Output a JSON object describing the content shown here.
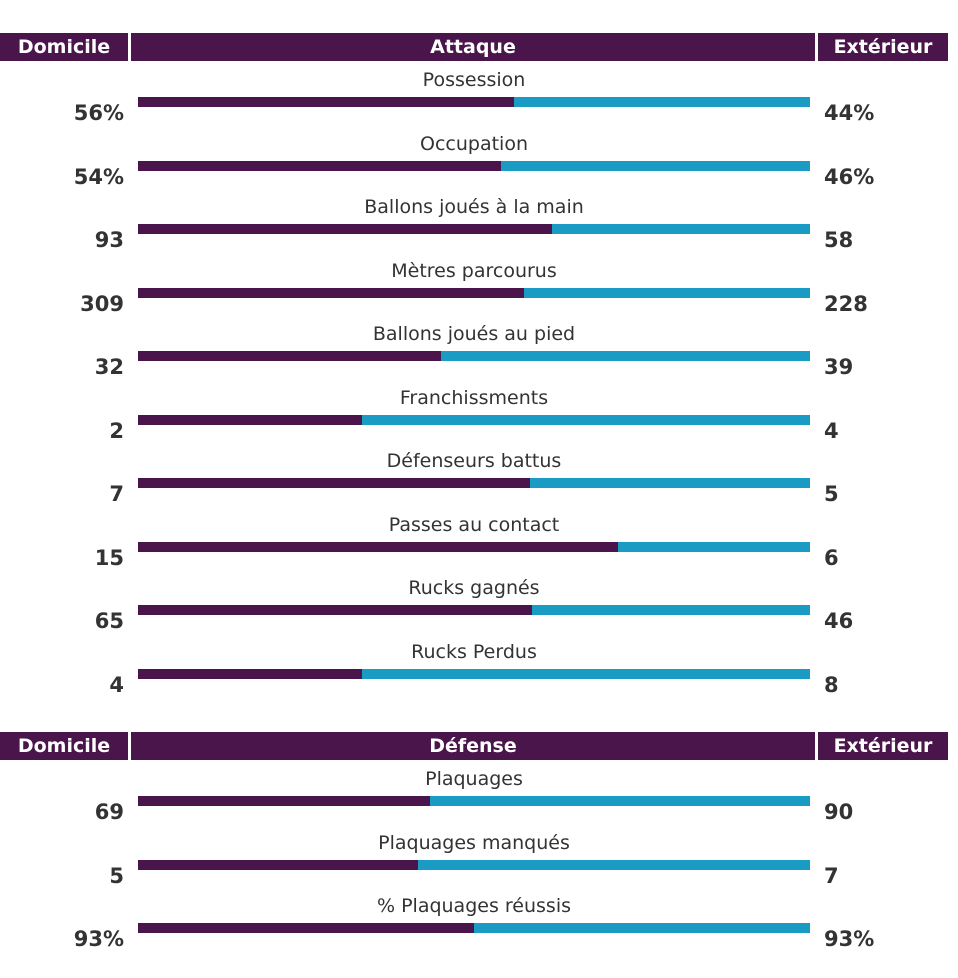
{
  "colors": {
    "home": "#4a154b",
    "away": "#1a9bc4",
    "header_bg": "#4a154b",
    "text": "#333333"
  },
  "chart_data": [
    {
      "type": "bar",
      "title": "Attaque",
      "left_header": "Domicile",
      "right_header": "Extérieur",
      "rows": [
        {
          "label": "Possession",
          "home": "56%",
          "away": "44%",
          "home_share": 0.56
        },
        {
          "label": "Occupation",
          "home": "54%",
          "away": "46%",
          "home_share": 0.54
        },
        {
          "label": "Ballons joués à la main",
          "home": "93",
          "away": "58",
          "home_share": 0.616
        },
        {
          "label": "Mètres parcourus",
          "home": "309",
          "away": "228",
          "home_share": 0.575
        },
        {
          "label": "Ballons joués au pied",
          "home": "32",
          "away": "39",
          "home_share": 0.451
        },
        {
          "label": "Franchissments",
          "home": "2",
          "away": "4",
          "home_share": 0.333
        },
        {
          "label": "Défenseurs battus",
          "home": "7",
          "away": "5",
          "home_share": 0.583
        },
        {
          "label": "Passes au contact",
          "home": "15",
          "away": "6",
          "home_share": 0.714
        },
        {
          "label": "Rucks gagnés",
          "home": "65",
          "away": "46",
          "home_share": 0.586
        },
        {
          "label": "Rucks Perdus",
          "home": "4",
          "away": "8",
          "home_share": 0.333
        }
      ]
    },
    {
      "type": "bar",
      "title": "Défense",
      "left_header": "Domicile",
      "right_header": "Extérieur",
      "rows": [
        {
          "label": "Plaquages",
          "home": "69",
          "away": "90",
          "home_share": 0.434
        },
        {
          "label": "Plaquages manqués",
          "home": "5",
          "away": "7",
          "home_share": 0.417
        },
        {
          "label": "% Plaquages réussis",
          "home": "93%",
          "away": "93%",
          "home_share": 0.5
        }
      ]
    }
  ]
}
